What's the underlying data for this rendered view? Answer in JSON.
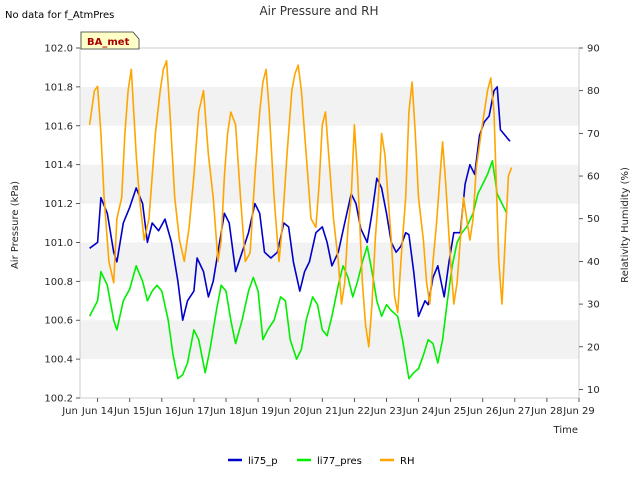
{
  "note": "No data for f_AtmPres",
  "badge": "BA_met",
  "chart_data": {
    "type": "line",
    "title": "Air Pressure and RH",
    "xlabel": "Time",
    "ylabel": "Air Pressure (kPa)",
    "y2label": "Relativity Humidity (%)",
    "x_ticks": [
      "Jun 14",
      "Jun 15",
      "Jun 16",
      "Jun 17",
      "Jun 18",
      "Jun 19",
      "Jun 20",
      "Jun 21",
      "Jun 22",
      "Jun 23",
      "Jun 24",
      "Jun 25",
      "Jun 26",
      "Jun 27",
      "Jun 28",
      "Jun 29"
    ],
    "xlim": [
      13.45,
      29.0
    ],
    "ylim": [
      100.2,
      102.0
    ],
    "y_ticks": [
      "100.2",
      "100.4",
      "100.6",
      "100.8",
      "101.0",
      "101.2",
      "101.4",
      "101.6",
      "101.8",
      "102.0"
    ],
    "y2lim": [
      8,
      90
    ],
    "y2_ticks": [
      "10",
      "20",
      "30",
      "40",
      "50",
      "60",
      "70",
      "80",
      "90"
    ],
    "grid": "horizontal bands",
    "legend_position": "bottom",
    "series": [
      {
        "name": "li75_p",
        "axis": "left",
        "color": "#0000cc",
        "points": [
          [
            13.75,
            100.97
          ],
          [
            14.0,
            101.0
          ],
          [
            14.1,
            101.23
          ],
          [
            14.3,
            101.15
          ],
          [
            14.5,
            100.95
          ],
          [
            14.6,
            100.9
          ],
          [
            14.8,
            101.1
          ],
          [
            15.0,
            101.18
          ],
          [
            15.2,
            101.28
          ],
          [
            15.4,
            101.2
          ],
          [
            15.55,
            101.0
          ],
          [
            15.7,
            101.1
          ],
          [
            15.9,
            101.06
          ],
          [
            16.1,
            101.12
          ],
          [
            16.3,
            101.0
          ],
          [
            16.5,
            100.8
          ],
          [
            16.65,
            100.6
          ],
          [
            16.8,
            100.7
          ],
          [
            17.0,
            100.75
          ],
          [
            17.1,
            100.92
          ],
          [
            17.3,
            100.85
          ],
          [
            17.45,
            100.72
          ],
          [
            17.6,
            100.8
          ],
          [
            17.8,
            101.0
          ],
          [
            17.95,
            101.15
          ],
          [
            18.1,
            101.1
          ],
          [
            18.3,
            100.85
          ],
          [
            18.5,
            100.95
          ],
          [
            18.7,
            101.05
          ],
          [
            18.9,
            101.2
          ],
          [
            19.05,
            101.15
          ],
          [
            19.2,
            100.95
          ],
          [
            19.4,
            100.92
          ],
          [
            19.6,
            100.95
          ],
          [
            19.8,
            101.1
          ],
          [
            19.95,
            101.08
          ],
          [
            20.1,
            100.9
          ],
          [
            20.3,
            100.75
          ],
          [
            20.45,
            100.85
          ],
          [
            20.6,
            100.9
          ],
          [
            20.8,
            101.05
          ],
          [
            21.0,
            101.08
          ],
          [
            21.15,
            101.0
          ],
          [
            21.3,
            100.88
          ],
          [
            21.5,
            100.95
          ],
          [
            21.7,
            101.1
          ],
          [
            21.9,
            101.25
          ],
          [
            22.05,
            101.2
          ],
          [
            22.2,
            101.07
          ],
          [
            22.4,
            101.0
          ],
          [
            22.55,
            101.15
          ],
          [
            22.7,
            101.33
          ],
          [
            22.85,
            101.28
          ],
          [
            23.0,
            101.15
          ],
          [
            23.15,
            101.0
          ],
          [
            23.3,
            100.95
          ],
          [
            23.45,
            100.98
          ],
          [
            23.6,
            101.05
          ],
          [
            23.7,
            101.04
          ],
          [
            23.85,
            100.85
          ],
          [
            24.0,
            100.62
          ],
          [
            24.2,
            100.7
          ],
          [
            24.3,
            100.68
          ],
          [
            24.45,
            100.82
          ],
          [
            24.6,
            100.88
          ],
          [
            24.8,
            100.72
          ],
          [
            24.95,
            100.9
          ],
          [
            25.1,
            101.05
          ],
          [
            25.3,
            101.05
          ],
          [
            25.45,
            101.3
          ],
          [
            25.6,
            101.4
          ],
          [
            25.75,
            101.35
          ],
          [
            25.9,
            101.55
          ],
          [
            26.05,
            101.62
          ],
          [
            26.2,
            101.65
          ],
          [
            26.35,
            101.78
          ],
          [
            26.45,
            101.8
          ],
          [
            26.55,
            101.58
          ],
          [
            26.7,
            101.55
          ],
          [
            26.85,
            101.52
          ]
        ]
      },
      {
        "name": "li77_pres",
        "axis": "left",
        "color": "#00ee00",
        "points": [
          [
            13.75,
            100.62
          ],
          [
            14.0,
            100.7
          ],
          [
            14.1,
            100.85
          ],
          [
            14.3,
            100.78
          ],
          [
            14.5,
            100.6
          ],
          [
            14.6,
            100.55
          ],
          [
            14.8,
            100.7
          ],
          [
            15.0,
            100.76
          ],
          [
            15.2,
            100.88
          ],
          [
            15.4,
            100.8
          ],
          [
            15.55,
            100.7
          ],
          [
            15.7,
            100.75
          ],
          [
            15.85,
            100.78
          ],
          [
            16.0,
            100.75
          ],
          [
            16.2,
            100.6
          ],
          [
            16.35,
            100.42
          ],
          [
            16.5,
            100.3
          ],
          [
            16.65,
            100.32
          ],
          [
            16.8,
            100.38
          ],
          [
            17.0,
            100.55
          ],
          [
            17.15,
            100.5
          ],
          [
            17.35,
            100.33
          ],
          [
            17.5,
            100.45
          ],
          [
            17.7,
            100.65
          ],
          [
            17.85,
            100.78
          ],
          [
            18.0,
            100.75
          ],
          [
            18.15,
            100.6
          ],
          [
            18.3,
            100.48
          ],
          [
            18.5,
            100.6
          ],
          [
            18.7,
            100.75
          ],
          [
            18.85,
            100.82
          ],
          [
            19.0,
            100.75
          ],
          [
            19.15,
            100.5
          ],
          [
            19.3,
            100.55
          ],
          [
            19.5,
            100.6
          ],
          [
            19.7,
            100.72
          ],
          [
            19.85,
            100.7
          ],
          [
            20.0,
            100.5
          ],
          [
            20.2,
            100.4
          ],
          [
            20.35,
            100.45
          ],
          [
            20.5,
            100.6
          ],
          [
            20.7,
            100.72
          ],
          [
            20.85,
            100.68
          ],
          [
            21.0,
            100.55
          ],
          [
            21.15,
            100.52
          ],
          [
            21.3,
            100.62
          ],
          [
            21.5,
            100.78
          ],
          [
            21.65,
            100.88
          ],
          [
            21.8,
            100.82
          ],
          [
            21.95,
            100.72
          ],
          [
            22.1,
            100.8
          ],
          [
            22.25,
            100.9
          ],
          [
            22.4,
            100.98
          ],
          [
            22.55,
            100.85
          ],
          [
            22.7,
            100.7
          ],
          [
            22.85,
            100.62
          ],
          [
            23.0,
            100.68
          ],
          [
            23.15,
            100.65
          ],
          [
            23.35,
            100.62
          ],
          [
            23.5,
            100.5
          ],
          [
            23.7,
            100.3
          ],
          [
            23.85,
            100.33
          ],
          [
            24.0,
            100.35
          ],
          [
            24.15,
            100.42
          ],
          [
            24.3,
            100.5
          ],
          [
            24.45,
            100.48
          ],
          [
            24.6,
            100.38
          ],
          [
            24.75,
            100.5
          ],
          [
            24.9,
            100.7
          ],
          [
            25.05,
            100.88
          ],
          [
            25.2,
            101.0
          ],
          [
            25.35,
            101.05
          ],
          [
            25.5,
            101.08
          ],
          [
            25.7,
            101.15
          ],
          [
            25.85,
            101.25
          ],
          [
            26.0,
            101.3
          ],
          [
            26.15,
            101.35
          ],
          [
            26.3,
            101.42
          ],
          [
            26.45,
            101.25
          ],
          [
            26.6,
            101.2
          ],
          [
            26.75,
            101.15
          ]
        ]
      },
      {
        "name": "RH",
        "axis": "right",
        "color": "#ffa500",
        "points": [
          [
            13.75,
            72
          ],
          [
            13.9,
            80
          ],
          [
            14.0,
            81
          ],
          [
            14.1,
            70
          ],
          [
            14.2,
            55
          ],
          [
            14.35,
            40
          ],
          [
            14.5,
            35
          ],
          [
            14.6,
            50
          ],
          [
            14.75,
            55
          ],
          [
            14.85,
            70
          ],
          [
            14.95,
            80
          ],
          [
            15.05,
            85
          ],
          [
            15.2,
            65
          ],
          [
            15.3,
            55
          ],
          [
            15.45,
            45
          ],
          [
            15.6,
            50
          ],
          [
            15.8,
            70
          ],
          [
            15.95,
            80
          ],
          [
            16.05,
            85
          ],
          [
            16.15,
            87
          ],
          [
            16.25,
            75
          ],
          [
            16.4,
            55
          ],
          [
            16.55,
            45
          ],
          [
            16.7,
            40
          ],
          [
            16.85,
            48
          ],
          [
            17.0,
            60
          ],
          [
            17.15,
            75
          ],
          [
            17.3,
            80
          ],
          [
            17.45,
            65
          ],
          [
            17.6,
            55
          ],
          [
            17.75,
            40
          ],
          [
            17.85,
            45
          ],
          [
            17.95,
            60
          ],
          [
            18.05,
            70
          ],
          [
            18.15,
            75
          ],
          [
            18.3,
            72
          ],
          [
            18.45,
            55
          ],
          [
            18.6,
            40
          ],
          [
            18.75,
            42
          ],
          [
            18.9,
            60
          ],
          [
            19.05,
            75
          ],
          [
            19.15,
            82
          ],
          [
            19.25,
            85
          ],
          [
            19.35,
            75
          ],
          [
            19.5,
            55
          ],
          [
            19.65,
            40
          ],
          [
            19.75,
            48
          ],
          [
            19.9,
            65
          ],
          [
            20.05,
            80
          ],
          [
            20.15,
            84
          ],
          [
            20.25,
            86
          ],
          [
            20.35,
            80
          ],
          [
            20.5,
            65
          ],
          [
            20.65,
            50
          ],
          [
            20.8,
            48
          ],
          [
            20.9,
            58
          ],
          [
            21.0,
            72
          ],
          [
            21.1,
            75
          ],
          [
            21.2,
            65
          ],
          [
            21.35,
            50
          ],
          [
            21.5,
            40
          ],
          [
            21.6,
            30
          ],
          [
            21.7,
            35
          ],
          [
            21.8,
            48
          ],
          [
            21.9,
            55
          ],
          [
            22.0,
            72
          ],
          [
            22.1,
            60
          ],
          [
            22.25,
            35
          ],
          [
            22.35,
            25
          ],
          [
            22.45,
            20
          ],
          [
            22.55,
            30
          ],
          [
            22.65,
            45
          ],
          [
            22.75,
            55
          ],
          [
            22.85,
            70
          ],
          [
            22.95,
            65
          ],
          [
            23.05,
            55
          ],
          [
            23.15,
            45
          ],
          [
            23.25,
            32
          ],
          [
            23.35,
            28
          ],
          [
            23.45,
            40
          ],
          [
            23.6,
            55
          ],
          [
            23.7,
            75
          ],
          [
            23.8,
            82
          ],
          [
            23.9,
            70
          ],
          [
            24.0,
            55
          ],
          [
            24.15,
            45
          ],
          [
            24.25,
            35
          ],
          [
            24.35,
            30
          ],
          [
            24.45,
            40
          ],
          [
            24.55,
            48
          ],
          [
            24.65,
            58
          ],
          [
            24.75,
            68
          ],
          [
            24.85,
            58
          ],
          [
            25.0,
            40
          ],
          [
            25.1,
            30
          ],
          [
            25.2,
            35
          ],
          [
            25.3,
            45
          ],
          [
            25.4,
            55
          ],
          [
            25.5,
            50
          ],
          [
            25.6,
            45
          ],
          [
            25.7,
            50
          ],
          [
            25.8,
            62
          ],
          [
            25.95,
            70
          ],
          [
            26.05,
            75
          ],
          [
            26.15,
            80
          ],
          [
            26.25,
            83
          ],
          [
            26.35,
            75
          ],
          [
            26.5,
            40
          ],
          [
            26.6,
            30
          ],
          [
            26.7,
            45
          ],
          [
            26.8,
            60
          ],
          [
            26.9,
            62
          ]
        ]
      }
    ]
  }
}
